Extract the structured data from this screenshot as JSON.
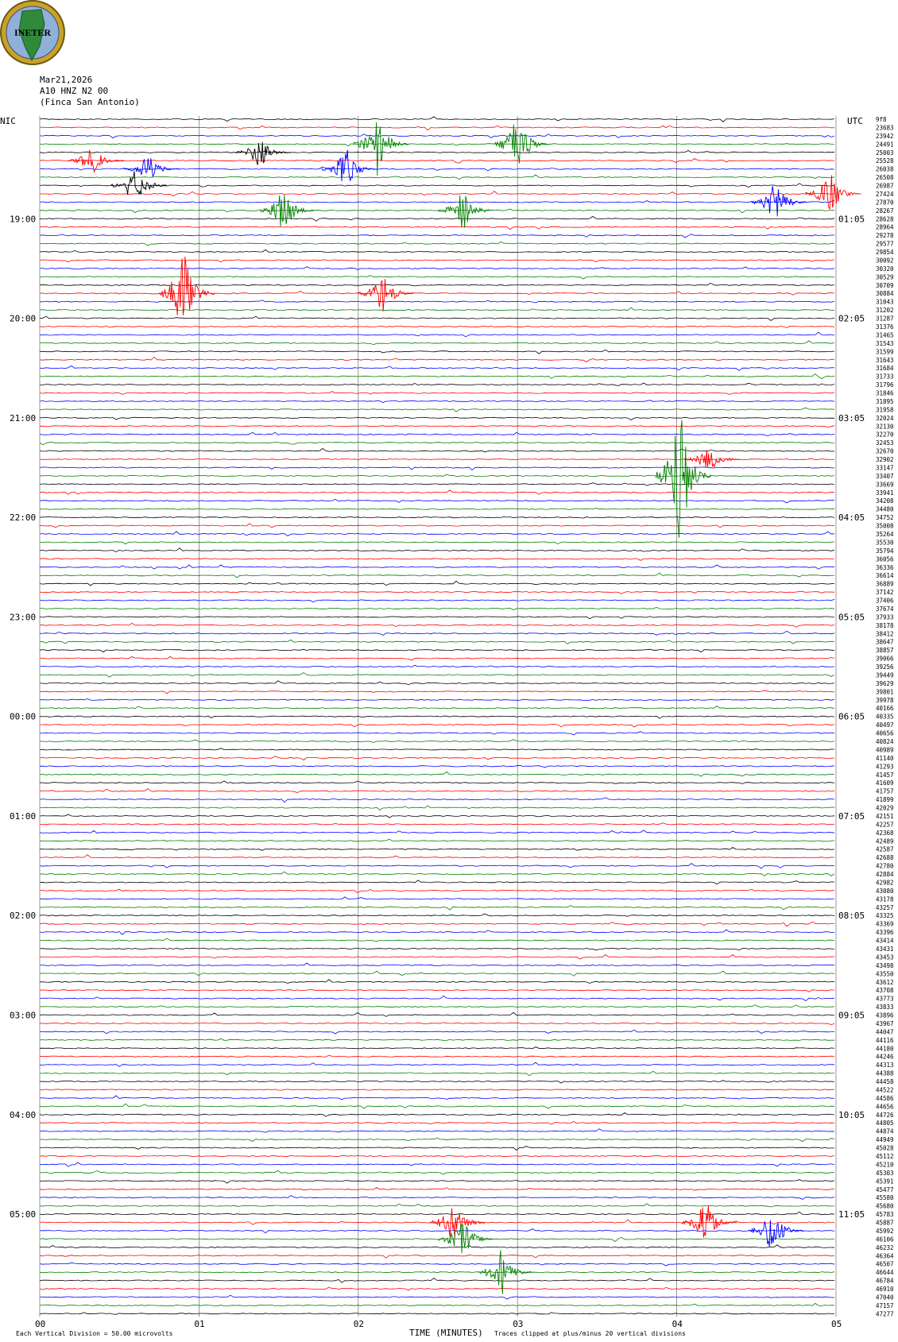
{
  "logo": {
    "text": "INETER"
  },
  "header": {
    "date": "Mar21,2026",
    "station": "A10 HNZ N2 00",
    "site": "(Finca San Antonio)"
  },
  "labels": {
    "left_zone": "NIC",
    "right_zone": "UTC",
    "xlabel": "TIME (MINUTES)",
    "footer_left": "Each Vertical Division =    50.00 microvolts",
    "footer_right": "Traces clipped at plus/minus 20 vertical divisions"
  },
  "colors": {
    "trace_cycle": [
      "#000000",
      "#ff0000",
      "#0000ff",
      "#008000"
    ],
    "gridline": "#808080"
  },
  "chart_data": {
    "type": "line",
    "title": "",
    "xlabel": "TIME (MINUTES)",
    "ylabel": "",
    "xlim": [
      0,
      5
    ],
    "x_ticks": [
      "00",
      "01",
      "02",
      "03",
      "04",
      "05"
    ],
    "left_hour_labels": [
      "19:00",
      "20:00",
      "21:00",
      "22:00",
      "23:00",
      "00:00",
      "01:00",
      "02:00",
      "03:00",
      "04:00",
      "05:00"
    ],
    "right_hour_labels": [
      "01:05",
      "02:05",
      "03:05",
      "04:05",
      "05:05",
      "06:05",
      "07:05",
      "08:05",
      "09:05",
      "10:05",
      "11:05"
    ],
    "trace_counts": [
      "9f8",
      "23683",
      "23942",
      "24491",
      "25003",
      "25528",
      "26038",
      "26508",
      "26987",
      "27424",
      "27870",
      "28267",
      "28628",
      "28964",
      "29278",
      "29577",
      "29854",
      "30092",
      "30320",
      "30529",
      "30709",
      "30884",
      "31043",
      "31202",
      "31287",
      "31376",
      "31465",
      "31543",
      "31599",
      "31643",
      "31684",
      "31733",
      "31796",
      "31846",
      "31895",
      "31958",
      "32024",
      "32130",
      "32270",
      "32453",
      "32670",
      "32902",
      "33147",
      "33407",
      "33669",
      "33941",
      "34208",
      "34480",
      "34752",
      "35008",
      "35264",
      "35530",
      "35794",
      "36056",
      "36336",
      "36614",
      "36889",
      "37142",
      "37406",
      "37674",
      "37933",
      "38178",
      "38412",
      "38647",
      "38857",
      "39066",
      "39256",
      "39449",
      "39629",
      "39801",
      "39978",
      "40166",
      "40335",
      "40497",
      "40656",
      "40824",
      "40989",
      "41140",
      "41293",
      "41457",
      "41609",
      "41757",
      "41899",
      "42029",
      "42151",
      "42257",
      "42368",
      "42489",
      "42587",
      "42688",
      "42780",
      "42884",
      "42982",
      "43080",
      "43178",
      "43257",
      "43325",
      "43369",
      "43396",
      "43414",
      "43431",
      "43453",
      "43498",
      "43550",
      "43612",
      "43708",
      "43773",
      "43833",
      "43896",
      "43967",
      "44047",
      "44116",
      "44180",
      "44246",
      "44313",
      "44388",
      "44458",
      "44522",
      "44586",
      "44656",
      "44726",
      "44805",
      "44874",
      "44949",
      "45028",
      "45112",
      "45210",
      "45303",
      "45391",
      "45477",
      "45580",
      "45680",
      "45783",
      "45887",
      "45992",
      "46106",
      "46232",
      "46364",
      "46507",
      "46644",
      "46784",
      "46910",
      "47040",
      "47157",
      "47277"
    ],
    "events": [
      {
        "row": 3,
        "minute": 2.12,
        "amp": 4
      },
      {
        "row": 3,
        "minute": 3.0,
        "amp": 4
      },
      {
        "row": 4,
        "minute": 1.38,
        "amp": 2
      },
      {
        "row": 5,
        "minute": 0.33,
        "amp": 2
      },
      {
        "row": 6,
        "minute": 0.68,
        "amp": 2
      },
      {
        "row": 6,
        "minute": 1.92,
        "amp": 3
      },
      {
        "row": 8,
        "minute": 0.6,
        "amp": 3
      },
      {
        "row": 9,
        "minute": 4.96,
        "amp": 3
      },
      {
        "row": 10,
        "minute": 4.62,
        "amp": 3
      },
      {
        "row": 11,
        "minute": 1.53,
        "amp": 3
      },
      {
        "row": 11,
        "minute": 2.65,
        "amp": 3
      },
      {
        "row": 21,
        "minute": 0.9,
        "amp": 6
      },
      {
        "row": 21,
        "minute": 2.15,
        "amp": 3
      },
      {
        "row": 41,
        "minute": 4.2,
        "amp": 2
      },
      {
        "row": 43,
        "minute": 4.02,
        "amp": 9
      },
      {
        "row": 133,
        "minute": 2.6,
        "amp": 3
      },
      {
        "row": 133,
        "minute": 4.18,
        "amp": 3
      },
      {
        "row": 135,
        "minute": 2.65,
        "amp": 3
      },
      {
        "row": 134,
        "minute": 4.6,
        "amp": 3
      },
      {
        "row": 139,
        "minute": 2.9,
        "amp": 3
      }
    ]
  }
}
